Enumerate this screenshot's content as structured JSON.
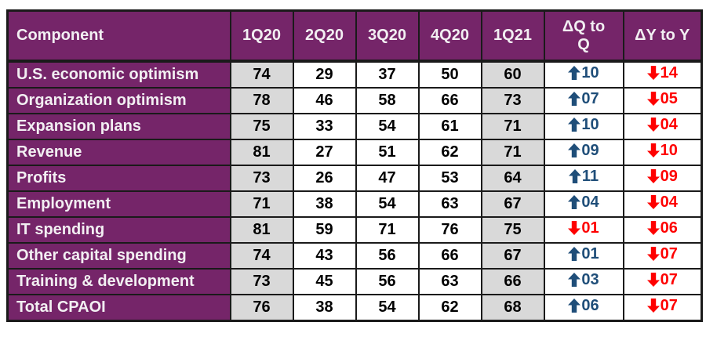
{
  "colors": {
    "purple": "#752569",
    "shaded_column_gray": "#D9D9D9",
    "up_arrow_navy": "#1F4E79",
    "down_arrow_red": "#FE0000",
    "border": "#1a1a1a"
  },
  "table": {
    "columns": [
      "Component",
      "1Q20",
      "2Q20",
      "3Q20",
      "4Q20",
      "1Q21",
      "ΔQ to\nQ",
      "ΔY to Y"
    ],
    "rows": [
      {
        "label": "U.S. economic optimism",
        "values": [
          74,
          29,
          37,
          50,
          60
        ],
        "qoq": {
          "dir": "up",
          "value": "10"
        },
        "yoy": {
          "dir": "down",
          "value": "14"
        }
      },
      {
        "label": "Organization optimism",
        "values": [
          78,
          46,
          58,
          66,
          73
        ],
        "qoq": {
          "dir": "up",
          "value": "07"
        },
        "yoy": {
          "dir": "down",
          "value": "05"
        }
      },
      {
        "label": "Expansion plans",
        "values": [
          75,
          33,
          54,
          61,
          71
        ],
        "qoq": {
          "dir": "up",
          "value": "10"
        },
        "yoy": {
          "dir": "down",
          "value": "04"
        }
      },
      {
        "label": "Revenue",
        "values": [
          81,
          27,
          51,
          62,
          71
        ],
        "qoq": {
          "dir": "up",
          "value": "09"
        },
        "yoy": {
          "dir": "down",
          "value": "10"
        }
      },
      {
        "label": "Profits",
        "values": [
          73,
          26,
          47,
          53,
          64
        ],
        "qoq": {
          "dir": "up",
          "value": "11"
        },
        "yoy": {
          "dir": "down",
          "value": "09"
        }
      },
      {
        "label": "Employment",
        "values": [
          71,
          38,
          54,
          63,
          67
        ],
        "qoq": {
          "dir": "up",
          "value": "04"
        },
        "yoy": {
          "dir": "down",
          "value": "04"
        }
      },
      {
        "label": "IT spending",
        "values": [
          81,
          59,
          71,
          76,
          75
        ],
        "qoq": {
          "dir": "down",
          "value": "01"
        },
        "yoy": {
          "dir": "down",
          "value": "06"
        }
      },
      {
        "label": "Other capital spending",
        "values": [
          74,
          43,
          56,
          66,
          67
        ],
        "qoq": {
          "dir": "up",
          "value": "01"
        },
        "yoy": {
          "dir": "down",
          "value": "07"
        }
      },
      {
        "label": "Training & development",
        "values": [
          73,
          45,
          56,
          63,
          66
        ],
        "qoq": {
          "dir": "up",
          "value": "03"
        },
        "yoy": {
          "dir": "down",
          "value": "07"
        }
      },
      {
        "label": "Total CPAOI",
        "values": [
          76,
          38,
          54,
          62,
          68
        ],
        "qoq": {
          "dir": "up",
          "value": "06"
        },
        "yoy": {
          "dir": "down",
          "value": "07"
        }
      }
    ]
  }
}
